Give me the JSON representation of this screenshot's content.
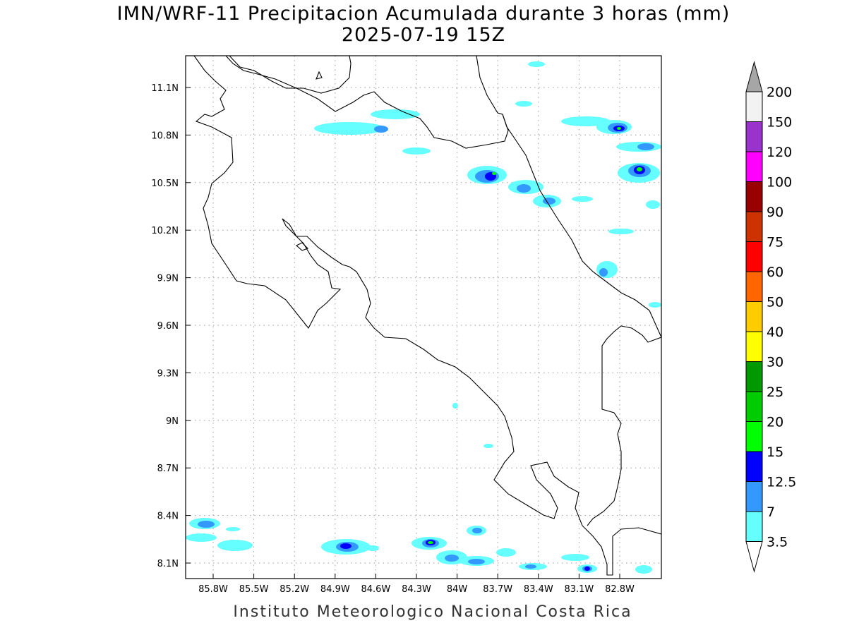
{
  "title": "IMN/WRF-11 Precipitacion Acumulada durante 3 horas (mm)",
  "subtitle": "2025-07-19 15Z",
  "footer": "Instituto Meteorologico Nacional Costa Rica",
  "lat_labels": [
    "11.1N",
    "10.8N",
    "10.5N",
    "10.2N",
    "9.9N",
    "9.6N",
    "9.3N",
    "9N",
    "8.7N",
    "8.4N",
    "8.1N"
  ],
  "lon_labels": [
    "85.8W",
    "85.5W",
    "85.2W",
    "84.9W",
    "84.6W",
    "84.3W",
    "84W",
    "83.7W",
    "83.4W",
    "83.1W",
    "82.8W"
  ],
  "colorbar": {
    "levels": [
      "3.5",
      "7",
      "12.5",
      "15",
      "20",
      "25",
      "30",
      "40",
      "50",
      "60",
      "75",
      "90",
      "100",
      "120",
      "150",
      "200"
    ],
    "colors": [
      "#66ffff",
      "#3399ff",
      "#0000ff",
      "#00ff00",
      "#00cc00",
      "#009900",
      "#ffff00",
      "#ffcc00",
      "#ff6600",
      "#ff0000",
      "#cc3300",
      "#990000",
      "#ff00ff",
      "#9933cc",
      "#f2f2f2"
    ],
    "below_color": "#ffffff",
    "above_color": "#a6a6a6"
  }
}
